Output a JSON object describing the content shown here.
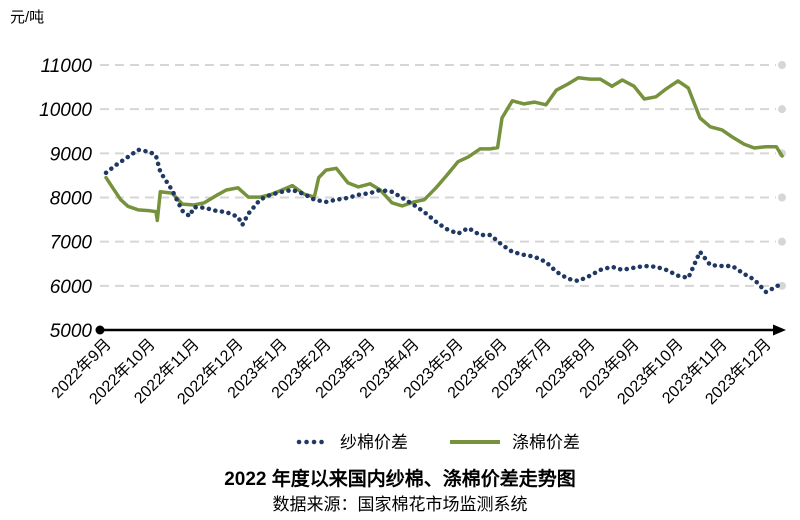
{
  "chart_data": {
    "type": "line",
    "title": "2022 年度以来国内纱棉、涤棉价差走势图",
    "source": "数据来源：国家棉花市场监测系统",
    "ylabel": "元/吨",
    "xlabel": "",
    "ylim": [
      5000,
      11000
    ],
    "y_ticks": [
      5000,
      6000,
      7000,
      8000,
      9000,
      10000,
      11000
    ],
    "x_ticks": [
      "2022年9月",
      "2022年10月",
      "2022年11月",
      "2022年12月",
      "2023年1月",
      "2023年2月",
      "2023年3月",
      "2023年4月",
      "2023年5月",
      "2023年6月",
      "2023年7月",
      "2023年8月",
      "2023年9月",
      "2023年10月",
      "2023年11月",
      "2023年12月"
    ],
    "grid": true,
    "legend": "bottom",
    "series": [
      {
        "name": "纱棉价差",
        "color": "#1f3864",
        "style": "dotted",
        "points": [
          [
            "2022-09-01",
            8560
          ],
          [
            "2022-09-08",
            8740
          ],
          [
            "2022-09-16",
            8920
          ],
          [
            "2022-09-23",
            9080
          ],
          [
            "2022-10-01",
            9030
          ],
          [
            "2022-10-05",
            8950
          ],
          [
            "2022-10-08",
            8580
          ],
          [
            "2022-10-16",
            8170
          ],
          [
            "2022-10-23",
            7700
          ],
          [
            "2022-10-28",
            7580
          ],
          [
            "2022-11-01",
            7780
          ],
          [
            "2022-11-08",
            7770
          ],
          [
            "2022-11-16",
            7700
          ],
          [
            "2022-11-23",
            7670
          ],
          [
            "2022-12-01",
            7560
          ],
          [
            "2022-12-04",
            7380
          ],
          [
            "2022-12-08",
            7630
          ],
          [
            "2022-12-16",
            7950
          ],
          [
            "2022-12-23",
            8060
          ],
          [
            "2023-01-01",
            8130
          ],
          [
            "2023-01-08",
            8170
          ],
          [
            "2023-01-16",
            8080
          ],
          [
            "2023-01-23",
            7950
          ],
          [
            "2023-02-01",
            7900
          ],
          [
            "2023-02-08",
            7950
          ],
          [
            "2023-02-16",
            7990
          ],
          [
            "2023-02-23",
            8060
          ],
          [
            "2023-03-01",
            8100
          ],
          [
            "2023-03-08",
            8170
          ],
          [
            "2023-03-16",
            8130
          ],
          [
            "2023-03-23",
            7990
          ],
          [
            "2023-04-01",
            7830
          ],
          [
            "2023-04-08",
            7670
          ],
          [
            "2023-04-16",
            7450
          ],
          [
            "2023-04-23",
            7290
          ],
          [
            "2023-05-01",
            7180
          ],
          [
            "2023-05-08",
            7310
          ],
          [
            "2023-05-16",
            7150
          ],
          [
            "2023-05-23",
            7150
          ],
          [
            "2023-06-01",
            6930
          ],
          [
            "2023-06-08",
            6770
          ],
          [
            "2023-06-16",
            6700
          ],
          [
            "2023-06-23",
            6660
          ],
          [
            "2023-07-01",
            6540
          ],
          [
            "2023-07-08",
            6320
          ],
          [
            "2023-07-16",
            6160
          ],
          [
            "2023-07-23",
            6110
          ],
          [
            "2023-08-01",
            6230
          ],
          [
            "2023-08-08",
            6360
          ],
          [
            "2023-08-16",
            6430
          ],
          [
            "2023-08-23",
            6360
          ],
          [
            "2023-09-01",
            6410
          ],
          [
            "2023-09-08",
            6450
          ],
          [
            "2023-09-16",
            6430
          ],
          [
            "2023-09-23",
            6360
          ],
          [
            "2023-10-01",
            6230
          ],
          [
            "2023-10-08",
            6180
          ],
          [
            "2023-10-16",
            6770
          ],
          [
            "2023-10-23",
            6470
          ],
          [
            "2023-11-01",
            6450
          ],
          [
            "2023-11-08",
            6450
          ],
          [
            "2023-11-16",
            6270
          ],
          [
            "2023-11-23",
            6140
          ],
          [
            "2023-12-01",
            5860
          ],
          [
            "2023-12-08",
            5980
          ],
          [
            "2023-12-12",
            6070
          ]
        ]
      },
      {
        "name": "涤棉价差",
        "color": "#76923c",
        "style": "solid",
        "points": [
          [
            "2022-09-01",
            8450
          ],
          [
            "2022-09-06",
            8200
          ],
          [
            "2022-09-11",
            7950
          ],
          [
            "2022-09-16",
            7800
          ],
          [
            "2022-09-23",
            7720
          ],
          [
            "2022-10-01",
            7700
          ],
          [
            "2022-10-05",
            7680
          ],
          [
            "2022-10-06",
            7480
          ],
          [
            "2022-10-08",
            8130
          ],
          [
            "2022-10-16",
            8100
          ],
          [
            "2022-10-23",
            7850
          ],
          [
            "2022-11-01",
            7830
          ],
          [
            "2022-11-08",
            7880
          ],
          [
            "2022-11-16",
            8040
          ],
          [
            "2022-11-23",
            8170
          ],
          [
            "2022-12-01",
            8220
          ],
          [
            "2022-12-08",
            8010
          ],
          [
            "2022-12-16",
            8010
          ],
          [
            "2022-12-23",
            8060
          ],
          [
            "2023-01-01",
            8170
          ],
          [
            "2023-01-08",
            8270
          ],
          [
            "2023-01-16",
            8080
          ],
          [
            "2023-01-23",
            8010
          ],
          [
            "2023-01-26",
            8450
          ],
          [
            "2023-02-01",
            8620
          ],
          [
            "2023-02-08",
            8660
          ],
          [
            "2023-02-16",
            8330
          ],
          [
            "2023-02-23",
            8240
          ],
          [
            "2023-03-01",
            8310
          ],
          [
            "2023-03-08",
            8170
          ],
          [
            "2023-03-16",
            7880
          ],
          [
            "2023-03-23",
            7810
          ],
          [
            "2023-04-01",
            7900
          ],
          [
            "2023-04-08",
            7950
          ],
          [
            "2023-04-16",
            8220
          ],
          [
            "2023-04-23",
            8490
          ],
          [
            "2023-05-01",
            8810
          ],
          [
            "2023-05-08",
            8920
          ],
          [
            "2023-05-16",
            9100
          ],
          [
            "2023-05-23",
            9100
          ],
          [
            "2023-05-28",
            9130
          ],
          [
            "2023-06-01",
            9800
          ],
          [
            "2023-06-08",
            10190
          ],
          [
            "2023-06-16",
            10120
          ],
          [
            "2023-06-23",
            10160
          ],
          [
            "2023-07-01",
            10100
          ],
          [
            "2023-07-08",
            10430
          ],
          [
            "2023-07-16",
            10570
          ],
          [
            "2023-07-23",
            10710
          ],
          [
            "2023-08-01",
            10680
          ],
          [
            "2023-08-08",
            10680
          ],
          [
            "2023-08-16",
            10520
          ],
          [
            "2023-08-23",
            10660
          ],
          [
            "2023-09-01",
            10520
          ],
          [
            "2023-09-08",
            10230
          ],
          [
            "2023-09-16",
            10280
          ],
          [
            "2023-09-23",
            10460
          ],
          [
            "2023-10-01",
            10640
          ],
          [
            "2023-10-08",
            10480
          ],
          [
            "2023-10-16",
            9800
          ],
          [
            "2023-10-23",
            9600
          ],
          [
            "2023-11-01",
            9530
          ],
          [
            "2023-11-08",
            9370
          ],
          [
            "2023-11-16",
            9210
          ],
          [
            "2023-11-23",
            9120
          ],
          [
            "2023-12-01",
            9150
          ],
          [
            "2023-12-08",
            9150
          ],
          [
            "2023-12-12",
            8940
          ]
        ]
      }
    ]
  }
}
